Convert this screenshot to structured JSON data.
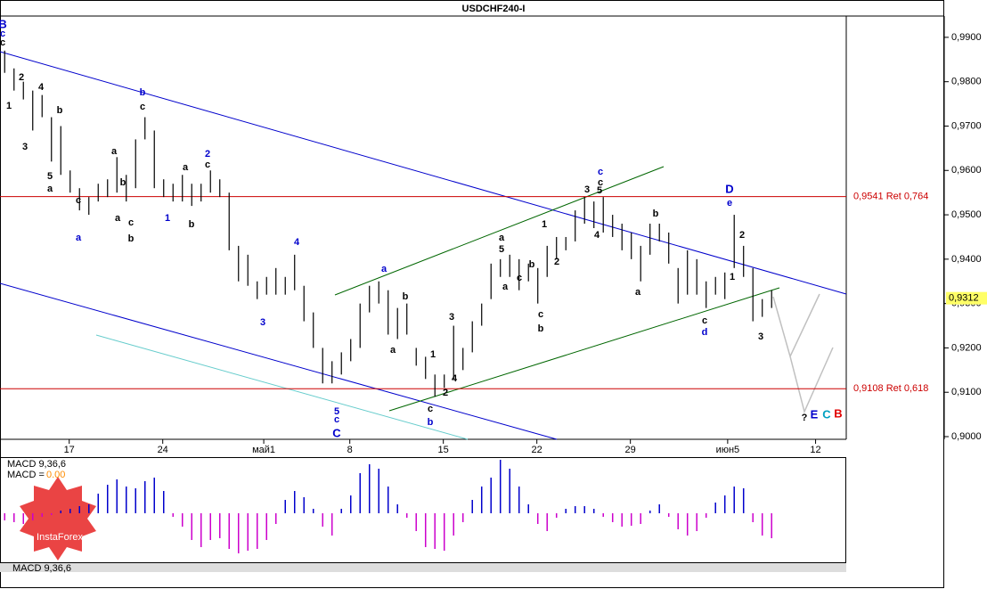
{
  "chart_data": {
    "type": "ohlc",
    "title": "USDCHF240-I",
    "xlim": [
      0,
      45.24
    ],
    "xticks": [
      {
        "value": 3.7,
        "label": "17"
      },
      {
        "value": 8.7,
        "label": "24"
      },
      {
        "value": 14.1,
        "label": "май1"
      },
      {
        "value": 18.7,
        "label": "8"
      },
      {
        "value": 23.7,
        "label": "15"
      },
      {
        "value": 28.7,
        "label": "22"
      },
      {
        "value": 33.7,
        "label": "29"
      },
      {
        "value": 38.9,
        "label": "июн5"
      },
      {
        "value": 43.6,
        "label": "12"
      }
    ],
    "ylim": [
      0.8994,
      0.9948
    ],
    "yticks": [
      {
        "value": 0.99,
        "label": "0,9900"
      },
      {
        "value": 0.98,
        "label": "0,9800"
      },
      {
        "value": 0.97,
        "label": "0,9700"
      },
      {
        "value": 0.96,
        "label": "0,9600"
      },
      {
        "value": 0.95,
        "label": "0,9500"
      },
      {
        "value": 0.94,
        "label": "0,9400"
      },
      {
        "value": 0.93,
        "label": "0,9300"
      },
      {
        "value": 0.92,
        "label": "0,9200"
      },
      {
        "value": 0.91,
        "label": "0,9100"
      },
      {
        "value": 0.9,
        "label": "0,9000"
      }
    ],
    "x": [
      0.25,
      0.75,
      1.25,
      1.75,
      2.25,
      2.75,
      3.25,
      3.75,
      4.25,
      4.75,
      5.25,
      5.75,
      6.25,
      6.75,
      7.25,
      7.75,
      8.25,
      8.75,
      9.25,
      9.75,
      10.25,
      10.75,
      11.25,
      11.75,
      12.25,
      12.75,
      13.25,
      13.75,
      14.25,
      14.75,
      15.25,
      15.75,
      16.25,
      16.75,
      17.25,
      17.75,
      18.25,
      18.75,
      19.25,
      19.75,
      20.25,
      20.75,
      21.25,
      21.75,
      22.25,
      22.75,
      23.25,
      23.75,
      24.25,
      24.75,
      25.25,
      25.75,
      26.25,
      26.75,
      27.25,
      27.75,
      28.25,
      28.75,
      29.25,
      29.75,
      30.25,
      30.75,
      31.25,
      31.75,
      32.25,
      32.75,
      33.25,
      33.75,
      34.25,
      34.75,
      35.25,
      35.75,
      36.25,
      36.75,
      37.25,
      37.75,
      38.25,
      38.75,
      39.25,
      39.75,
      40.25,
      40.75,
      41.25
    ],
    "high": [
      0.987,
      0.983,
      0.98,
      0.978,
      0.977,
      0.972,
      0.97,
      0.96,
      0.956,
      0.954,
      0.957,
      0.958,
      0.963,
      0.959,
      0.967,
      0.972,
      0.969,
      0.958,
      0.957,
      0.959,
      0.957,
      0.957,
      0.96,
      0.958,
      0.955,
      0.943,
      0.941,
      0.935,
      0.936,
      0.938,
      0.936,
      0.941,
      0.934,
      0.928,
      0.92,
      0.917,
      0.919,
      0.922,
      0.93,
      0.934,
      0.935,
      0.933,
      0.929,
      0.93,
      0.92,
      0.918,
      0.914,
      0.914,
      0.925,
      0.92,
      0.926,
      0.93,
      0.939,
      0.94,
      0.941,
      0.94,
      0.939,
      0.938,
      0.943,
      0.945,
      0.945,
      0.951,
      0.954,
      0.953,
      0.954,
      0.95,
      0.948,
      0.946,
      0.943,
      0.948,
      0.948,
      0.946,
      0.938,
      0.942,
      0.94,
      0.935,
      0.936,
      0.937,
      0.95,
      0.943,
      0.938,
      0.931,
      0.933
    ],
    "low": [
      0.982,
      0.978,
      0.976,
      0.969,
      0.972,
      0.962,
      0.959,
      0.955,
      0.951,
      0.95,
      0.953,
      0.954,
      0.955,
      0.953,
      0.956,
      0.967,
      0.956,
      0.954,
      0.953,
      0.953,
      0.952,
      0.953,
      0.955,
      0.954,
      0.942,
      0.935,
      0.934,
      0.931,
      0.932,
      0.932,
      0.932,
      0.933,
      0.926,
      0.92,
      0.912,
      0.912,
      0.914,
      0.917,
      0.92,
      0.928,
      0.93,
      0.923,
      0.922,
      0.923,
      0.916,
      0.913,
      0.909,
      0.911,
      0.913,
      0.915,
      0.919,
      0.925,
      0.931,
      0.936,
      0.936,
      0.933,
      0.935,
      0.93,
      0.936,
      0.94,
      0.942,
      0.944,
      0.948,
      0.947,
      0.946,
      0.945,
      0.942,
      0.94,
      0.935,
      0.941,
      0.944,
      0.939,
      0.93,
      0.932,
      0.932,
      0.929,
      0.932,
      0.931,
      0.938,
      0.936,
      0.926,
      0.927,
      0.929
    ],
    "levels": [
      {
        "value": 0.9541,
        "label": "0,9541 Ret 0,764"
      },
      {
        "value": 0.9108,
        "label": "0,9108 Ret 0,618"
      }
    ],
    "last_price": {
      "value": 0.9312,
      "label": "0,9312"
    },
    "wave_labels": [
      "B",
      "c",
      "c",
      "2",
      "4",
      "1",
      "b",
      "3",
      "5",
      "a",
      "c",
      "a",
      "b",
      "c",
      "a",
      "b",
      "a",
      "c",
      "b",
      "2",
      "c",
      "a",
      "1",
      "b",
      "4",
      "3",
      "a",
      "b",
      "a",
      "5",
      "c",
      "C",
      "1",
      "3",
      "4",
      "2",
      "c",
      "b",
      "a",
      "5",
      "a",
      "c",
      "b",
      "1",
      "2",
      "c",
      "b",
      "c",
      "c",
      "3",
      "5",
      "4",
      "b",
      "a",
      "D",
      "e",
      "2",
      "1",
      "c",
      "d",
      "3",
      "?",
      "E",
      "C",
      "B"
    ],
    "macd": {
      "label": "MACD 9,36,6",
      "value_label": "MACD =",
      "value_text": "0.00",
      "footer": "MACD 9,36,6",
      "ylim": [
        -0.0054,
        0.0061
      ],
      "values": [
        -0.0008,
        -0.001,
        -0.0012,
        -0.0008,
        -0.0004,
        -0.0002,
        0.0003,
        0.0005,
        0.0008,
        0.001,
        0.0022,
        0.0032,
        0.0038,
        0.003,
        0.0028,
        0.0036,
        0.004,
        0.0025,
        -0.0004,
        -0.0015,
        -0.003,
        -0.0038,
        -0.003,
        -0.0028,
        -0.004,
        -0.0045,
        -0.0042,
        -0.004,
        -0.003,
        -0.0012,
        0.0015,
        0.0025,
        0.0018,
        0.0005,
        -0.0015,
        -0.0025,
        0.0005,
        0.002,
        0.0045,
        0.0055,
        0.005,
        0.003,
        0.001,
        -0.0005,
        -0.002,
        -0.0038,
        -0.004,
        -0.0042,
        -0.0025,
        -0.001,
        0.0015,
        0.003,
        0.004,
        0.006,
        0.005,
        0.003,
        0.001,
        -0.0012,
        -0.002,
        -0.0005,
        0.0005,
        0.0008,
        0.0008,
        0.0005,
        -0.0004,
        -0.001,
        -0.0015,
        -0.0014,
        -0.0012,
        0.0003,
        0.001,
        -0.0004,
        -0.0018,
        -0.0025,
        -0.002,
        -0.0005,
        0.0012,
        0.002,
        0.003,
        0.0028,
        -0.001,
        -0.0025,
        -0.0028
      ]
    },
    "logo": "InstaForex"
  }
}
